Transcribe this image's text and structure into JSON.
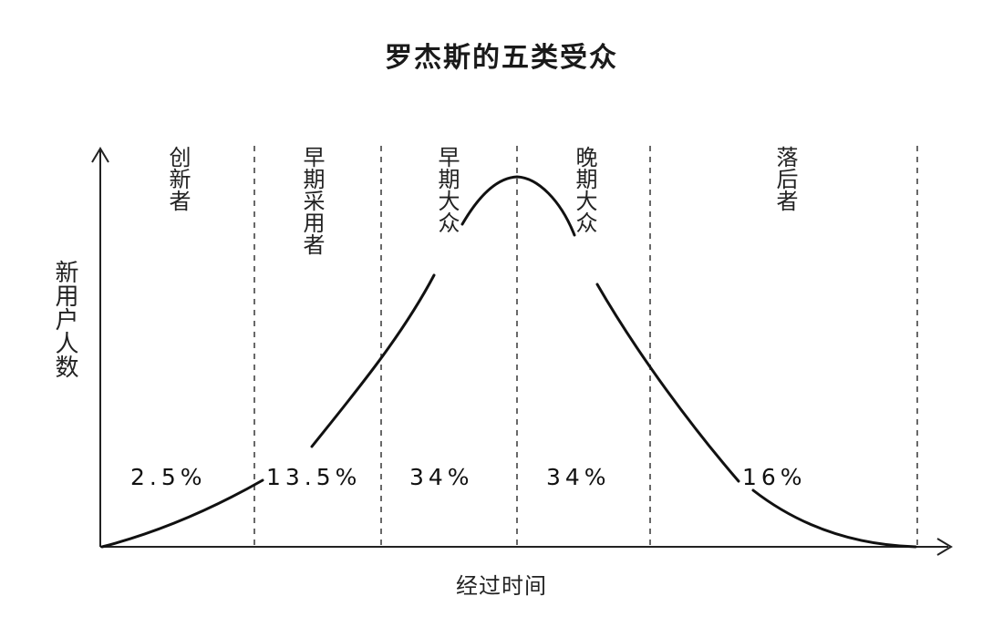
{
  "title": "罗杰斯的五类受众",
  "axes": {
    "x_label": "经过时间",
    "y_label": "新用户人数"
  },
  "segments": [
    {
      "name": "创新者",
      "share": "2.5%"
    },
    {
      "name": "早期采用者",
      "share": "13.5%"
    },
    {
      "name": "早期大众",
      "share": "34%"
    },
    {
      "name": "晚期大众",
      "share": "34%"
    },
    {
      "name": "落后者",
      "share": "16%"
    }
  ]
}
